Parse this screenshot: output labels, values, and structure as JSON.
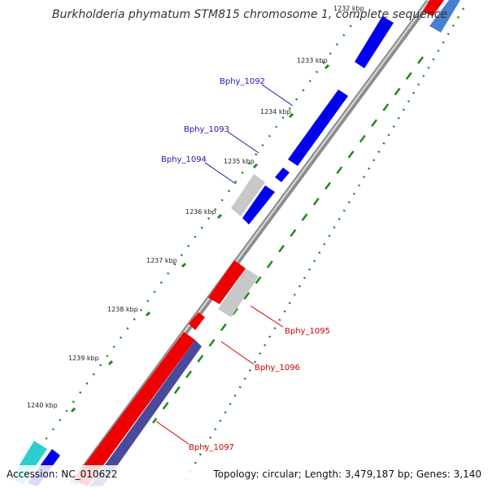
{
  "title": "Burkholderia phymatum STM815 chromosome 1, complete sequence",
  "footer": {
    "accession": "Accession: NC_010622",
    "summary": "Topology: circular; Length: 3,479,187 bp; Genes: 3,140"
  },
  "colors": {
    "forward_gene": "#0000ee",
    "reverse_gene": "#ee0000",
    "other_gene": "#c8c8c8",
    "reverse_cds": "#4a4a9a",
    "forward_cds": "#2ccfcf",
    "tick": "#1c8a1c",
    "backbone": "#8c8c8c",
    "forward_label": "#1a1aaa",
    "reverse_label": "#cc0000"
  },
  "ticks": [
    {
      "label": "1232 kbp"
    },
    {
      "label": "1233 kbp"
    },
    {
      "label": "1234 kbp"
    },
    {
      "label": "1235 kbp"
    },
    {
      "label": "1236 kbp"
    },
    {
      "label": "1237 kbp"
    },
    {
      "label": "1238 kbp"
    },
    {
      "label": "1239 kbp"
    },
    {
      "label": "1240 kbp"
    }
  ],
  "genes": [
    {
      "name": "Bphy_1092",
      "strand": "forward"
    },
    {
      "name": "Bphy_1093",
      "strand": "forward"
    },
    {
      "name": "Bphy_1094",
      "strand": "forward"
    },
    {
      "name": "Bphy_1095",
      "strand": "reverse"
    },
    {
      "name": "Bphy_1096",
      "strand": "reverse"
    },
    {
      "name": "Bphy_1097",
      "strand": "reverse"
    }
  ]
}
